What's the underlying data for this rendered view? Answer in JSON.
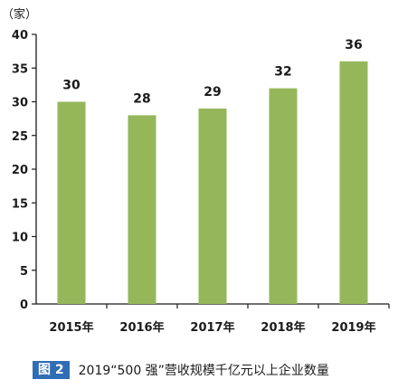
{
  "chart_data": {
    "type": "bar",
    "unit_label": "（家）",
    "categories": [
      "2015年",
      "2016年",
      "2017年",
      "2018年",
      "2019年"
    ],
    "values": [
      30,
      28,
      29,
      32,
      36
    ],
    "ylim": [
      0,
      40
    ],
    "yticks": [
      0,
      5,
      10,
      15,
      20,
      25,
      30,
      35,
      40
    ],
    "grid": false,
    "bar_color": "#95b75a",
    "axis_color": "#1a1a1a"
  },
  "caption": {
    "badge": "图 2",
    "title": "2019“500 强”营收规模千亿元以上企业数量"
  }
}
